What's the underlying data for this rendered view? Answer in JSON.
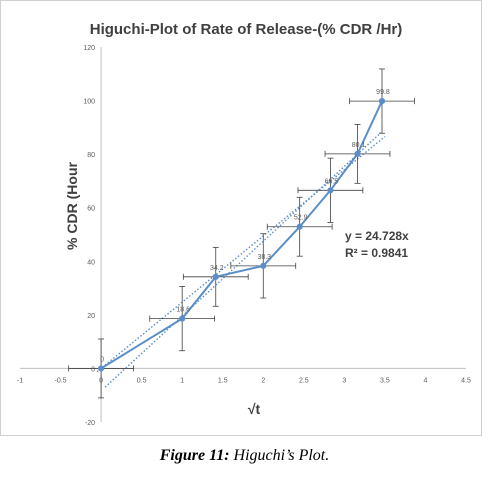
{
  "chart_data": {
    "type": "scatter",
    "title": "Higuchi-Plot of Rate of Release-(% CDR /Hr)",
    "xlabel": "√t",
    "ylabel": "% CDR (Hour",
    "xlim": [
      -1,
      4.5
    ],
    "ylim": [
      -20,
      120
    ],
    "x_ticks": [
      -1,
      -0.5,
      0,
      0.5,
      1,
      1.5,
      2,
      2.5,
      3,
      3.5,
      4,
      4.5
    ],
    "y_ticks": [
      -20,
      0,
      20,
      40,
      60,
      80,
      100,
      120
    ],
    "grid": false,
    "series": [
      {
        "x": [
          0,
          1,
          1.414,
          2,
          2.449,
          2.828,
          3.162,
          3.464
        ],
        "y": [
          0,
          18.6,
          34.2,
          38.3,
          52.9,
          66.5,
          80.1,
          99.8
        ],
        "labels": [
          "0",
          "18.6",
          "34.2",
          "38.3",
          "52.9",
          "66.5",
          "80.1",
          "99.8"
        ],
        "y_error": [
          11,
          12,
          11,
          12,
          11,
          12,
          11,
          12
        ],
        "x_error": 0.4,
        "color": "#5b8ec8"
      }
    ],
    "trendline": {
      "slope": 24.728,
      "color": "#5b8ec8",
      "equation": "y = 24.728x",
      "r_squared": "R² = 0.9841"
    }
  },
  "caption": {
    "figure_label": "Figure 11:",
    "text": " Higuchi’s Plot."
  }
}
